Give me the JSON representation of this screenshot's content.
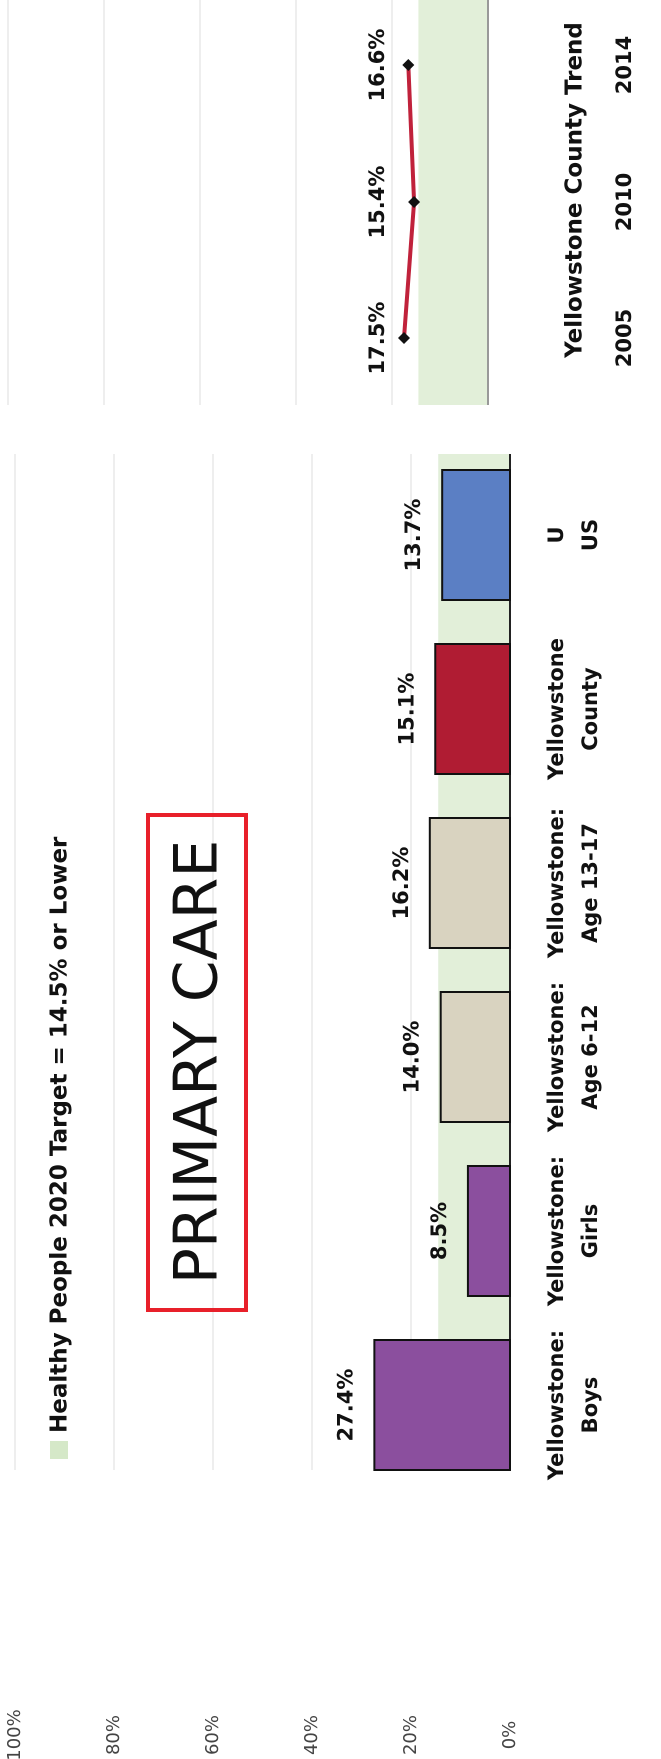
{
  "chart_data": [
    {
      "type": "bar",
      "legend_label": "Healthy People 2020 Target = 14.5% or Lower",
      "target": 14.5,
      "target_color": "#e2efd9",
      "annotation": "PRIMARY CARE",
      "categories": [
        "Yellowstone: Boys",
        "Yellowstone: Girls",
        "Yellowstone: Age 6-12",
        "Yellowstone: Age 13-17",
        "Yellowstone County",
        "US"
      ],
      "values": [
        27.4,
        8.5,
        14.0,
        16.2,
        15.1,
        13.7
      ],
      "value_labels": [
        "27.4%",
        "8.5%",
        "14.0%",
        "16.2%",
        "15.1%",
        "13.7%"
      ],
      "colors": [
        "#8b4f9e",
        "#8b4f9e",
        "#d9d3c0",
        "#d9d3c0",
        "#b01c33",
        "#5b7fc4"
      ],
      "ylim": [
        0,
        100
      ],
      "yticks": [
        {
          "value": 0,
          "label": "0%"
        },
        {
          "value": 20,
          "label": "20%"
        },
        {
          "value": 40,
          "label": "40%"
        },
        {
          "value": 60,
          "label": "60%"
        },
        {
          "value": 80,
          "label": "80%"
        },
        {
          "value": 100,
          "label": "100%"
        }
      ],
      "grid": true
    },
    {
      "type": "line",
      "title": "Yellowstone County Trend",
      "target": 14.5,
      "target_color": "#e2efd9",
      "categories": [
        "2005",
        "2010",
        "2014"
      ],
      "values": [
        17.5,
        15.4,
        16.6
      ],
      "value_labels": [
        "17.5%",
        "15.4%",
        "16.6%"
      ],
      "color": "#c0223b",
      "ylim": [
        0,
        100
      ],
      "yticks": [
        0,
        20,
        40,
        60,
        80,
        100
      ],
      "grid": true
    }
  ]
}
